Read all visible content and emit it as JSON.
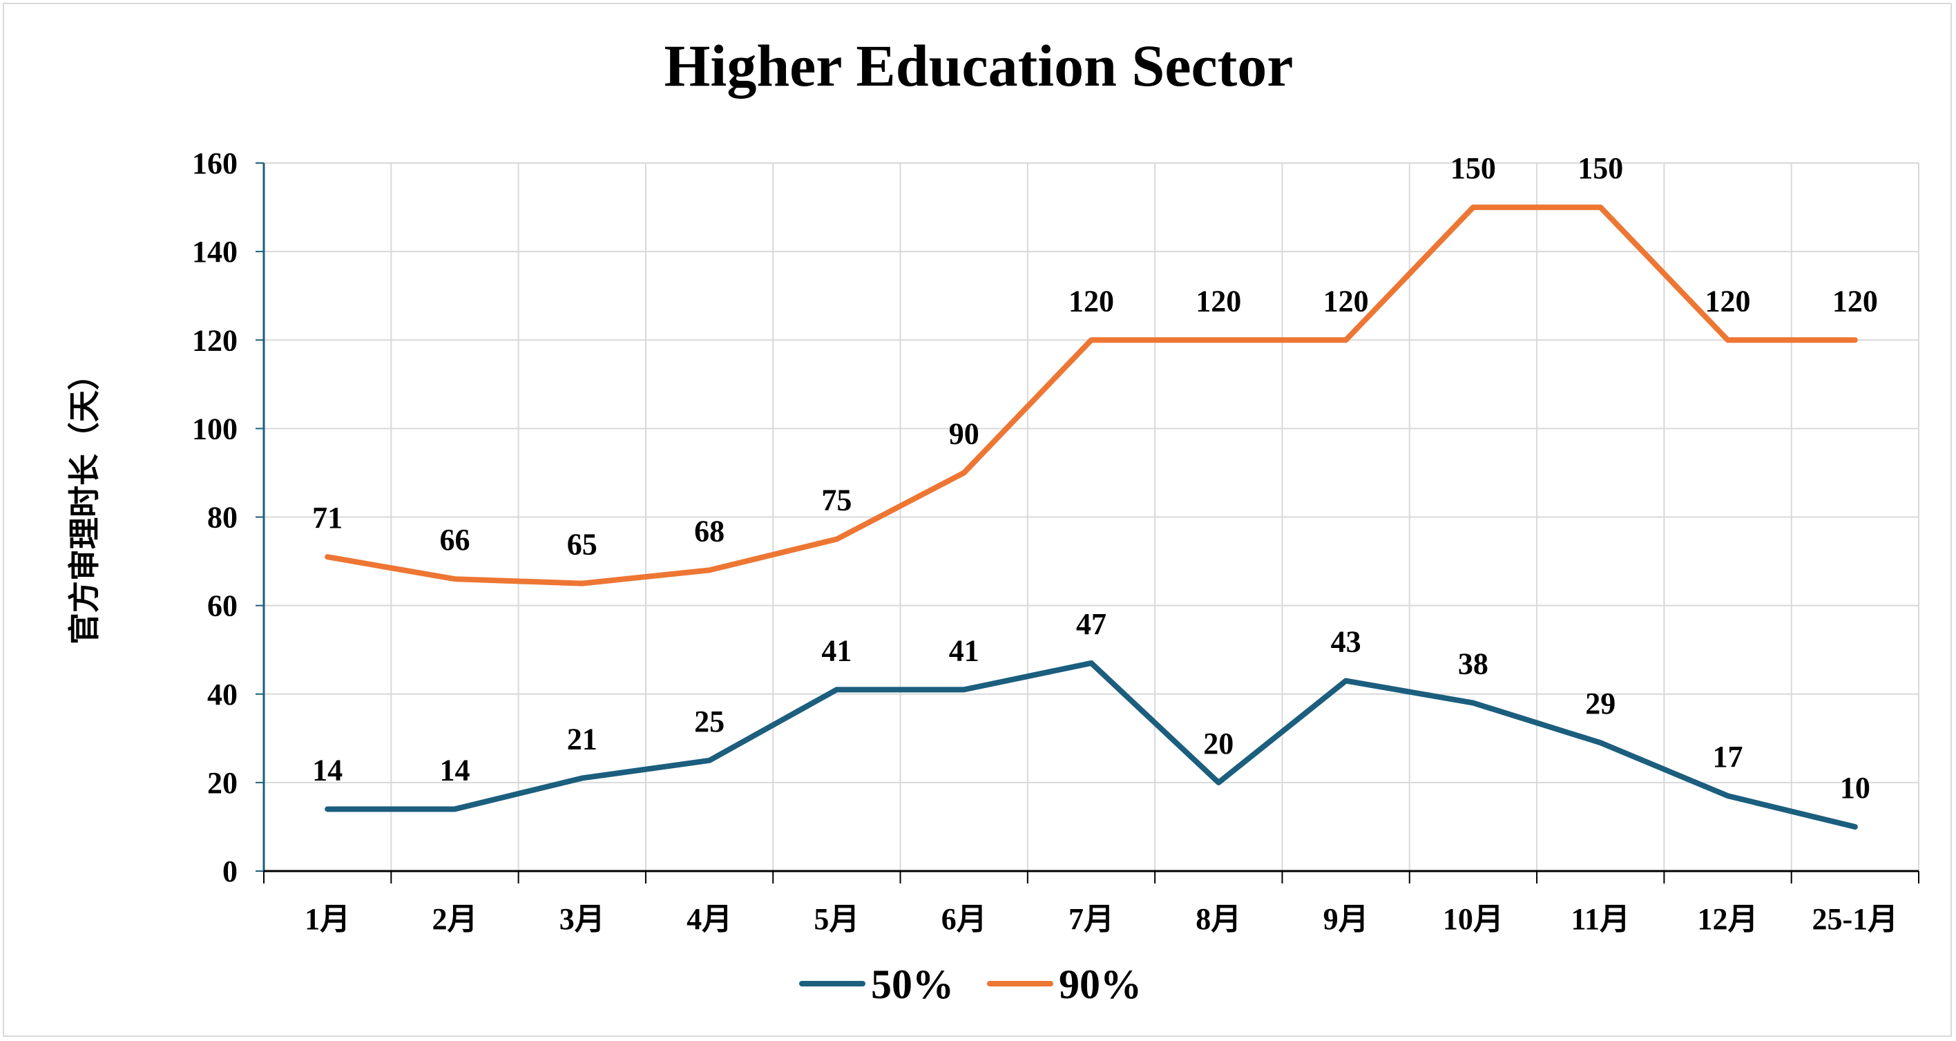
{
  "chart_data": {
    "type": "line",
    "title": "Higher Education Sector",
    "xlabel": "",
    "ylabel": "官方审理时长（天）",
    "categories": [
      "1月",
      "2月",
      "3月",
      "4月",
      "5月",
      "6月",
      "7月",
      "8月",
      "9月",
      "10月",
      "11月",
      "12月",
      "25-1月"
    ],
    "ylim": [
      0,
      160
    ],
    "yticks": [
      0,
      20,
      40,
      60,
      80,
      100,
      120,
      140,
      160
    ],
    "grid": true,
    "legend_position": "bottom",
    "series": [
      {
        "name": "50%",
        "color": "#1b5e7e",
        "values": [
          14,
          14,
          21,
          25,
          41,
          41,
          47,
          20,
          43,
          38,
          29,
          17,
          10
        ]
      },
      {
        "name": "90%",
        "color": "#ed7633",
        "values": [
          71,
          66,
          65,
          68,
          75,
          90,
          120,
          120,
          120,
          150,
          150,
          120,
          120
        ]
      }
    ]
  }
}
